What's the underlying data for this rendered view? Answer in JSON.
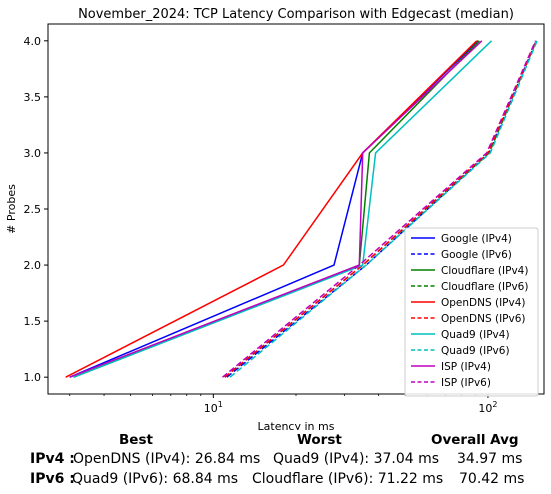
{
  "chart_data": {
    "type": "line",
    "title": "November_2024: TCP Latency Comparison with Edgecast (median)",
    "xlabel": "Latency in ms",
    "ylabel": "# Probes",
    "x_scale": "log",
    "xlim": [
      2.5,
      160
    ],
    "ylim": [
      0.85,
      4.15
    ],
    "x_ticks": [
      {
        "value": 10,
        "label": "10^1"
      },
      {
        "value": 100,
        "label": "10^2"
      }
    ],
    "y_ticks": [
      1.0,
      1.5,
      2.0,
      2.5,
      3.0,
      3.5,
      4.0
    ],
    "y_tick_labels": [
      "1.0",
      "1.5",
      "2.0",
      "2.5",
      "3.0",
      "3.5",
      "4.0"
    ],
    "grid": false,
    "legend_position": "lower-right",
    "series": [
      {
        "name": "Google (IPv4)",
        "color": "#0000ff",
        "dash": "solid",
        "x": [
          3.0,
          27.5,
          35.0,
          92.0
        ],
        "y": [
          1,
          2,
          3,
          4
        ]
      },
      {
        "name": "Google (IPv6)",
        "color": "#0000ff",
        "dash": "dashed",
        "x": [
          11.2,
          36.0,
          101.0,
          150.0
        ],
        "y": [
          1,
          2,
          3,
          4
        ]
      },
      {
        "name": "Cloudflare (IPv4)",
        "color": "#008000",
        "dash": "solid",
        "x": [
          3.1,
          34.0,
          37.0,
          93.0
        ],
        "y": [
          1,
          2,
          3,
          4
        ]
      },
      {
        "name": "Cloudflare (IPv6)",
        "color": "#008000",
        "dash": "dashed",
        "x": [
          11.0,
          35.0,
          101.0,
          150.0
        ],
        "y": [
          1,
          2,
          3,
          4
        ]
      },
      {
        "name": "OpenDNS (IPv4)",
        "color": "#ff0000",
        "dash": "solid",
        "x": [
          2.9,
          18.0,
          35.0,
          91.0
        ],
        "y": [
          1,
          2,
          3,
          4
        ]
      },
      {
        "name": "OpenDNS (IPv6)",
        "color": "#ff0000",
        "dash": "dashed",
        "x": [
          11.0,
          35.0,
          100.0,
          150.0
        ],
        "y": [
          1,
          2,
          3,
          4
        ]
      },
      {
        "name": "Quad9 (IPv4)",
        "color": "#00bfbf",
        "dash": "solid",
        "x": [
          3.1,
          35.0,
          39.0,
          103.0
        ],
        "y": [
          1,
          2,
          3,
          4
        ]
      },
      {
        "name": "Quad9 (IPv6)",
        "color": "#00bfbf",
        "dash": "dashed",
        "x": [
          11.5,
          36.0,
          102.0,
          151.0
        ],
        "y": [
          1,
          2,
          3,
          4
        ]
      },
      {
        "name": "ISP (IPv4)",
        "color": "#bf00bf",
        "dash": "solid",
        "x": [
          3.0,
          34.0,
          35.0,
          95.0
        ],
        "y": [
          1,
          2,
          3,
          4
        ]
      },
      {
        "name": "ISP (IPv6)",
        "color": "#bf00bf",
        "dash": "dashed",
        "x": [
          10.8,
          34.0,
          99.0,
          149.0
        ],
        "y": [
          1,
          2,
          3,
          4
        ]
      }
    ]
  },
  "summary": {
    "headers": {
      "best": "Best",
      "worst": "Worst",
      "avg": "Overall Avg"
    },
    "rows": [
      {
        "label": "IPv4 :",
        "best": "OpenDNS (IPv4): 26.84 ms",
        "worst": "Quad9 (IPv4): 37.04 ms",
        "avg": "34.97 ms"
      },
      {
        "label": "IPv6 :",
        "best": "Quad9 (IPv6): 68.84 ms",
        "worst": "Cloudflare (IPv6): 71.22 ms",
        "avg": "70.42 ms"
      }
    ]
  }
}
